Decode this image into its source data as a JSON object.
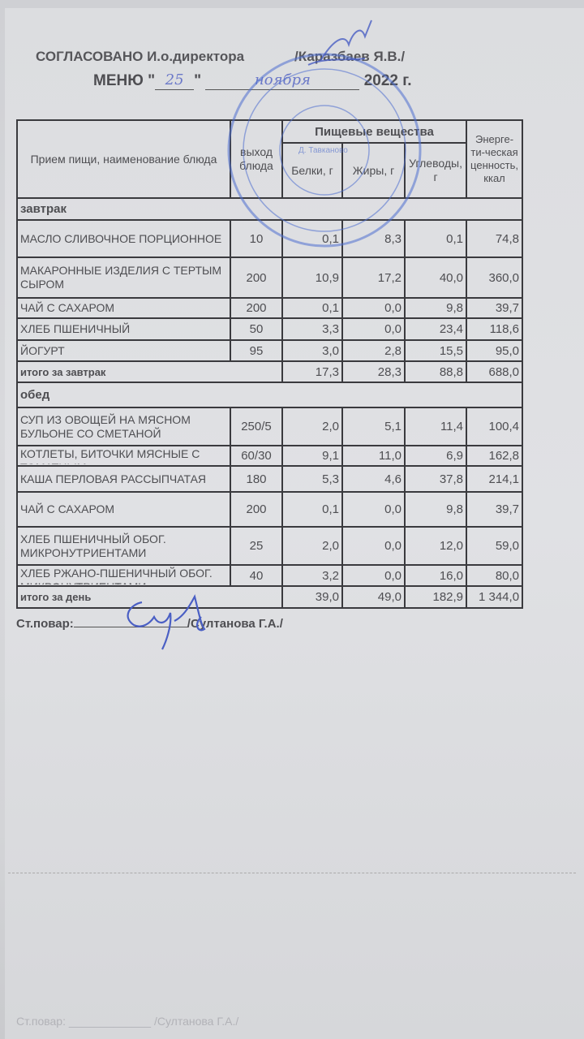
{
  "header": {
    "approved_label": "СОГЛАСОВАНО И.о.директора",
    "director_name": "/Каразбаев Я.В./",
    "menu_label": "МЕНЮ",
    "day_handwritten": "25",
    "month_handwritten": "ноября",
    "year_label": "2022 г."
  },
  "table": {
    "columns": {
      "dish": "Прием пищи, наименование блюда",
      "yield": "выход блюда",
      "nutrients": "Пищевые вещества",
      "protein": "Белки, г",
      "fat": "Жиры, г",
      "carbs": "Углеводы, г",
      "energy": "Энерге-ти-ческая ценность, ккал"
    },
    "sections": [
      {
        "title": "завтрак",
        "rows": [
          {
            "name": " МАСЛО  СЛИВОЧНОЕ ПОРЦИОННОЕ",
            "yield": "10",
            "protein": "0,1",
            "fat": "8,3",
            "carbs": "0,1",
            "energy": "74,8"
          },
          {
            "name": "МАКАРОННЫЕ ИЗДЕЛИЯ  С ТЕРТЫМ СЫРОМ",
            "yield": "200",
            "protein": "10,9",
            "fat": "17,2",
            "carbs": "40,0",
            "energy": "360,0"
          },
          {
            "name": "ЧАЙ С САХАРОМ",
            "yield": "200",
            "protein": "0,1",
            "fat": "0,0",
            "carbs": "9,8",
            "energy": "39,7"
          },
          {
            "name": "ХЛЕБ ПШЕНИЧНЫЙ",
            "yield": "50",
            "protein": "3,3",
            "fat": "0,0",
            "carbs": "23,4",
            "energy": "118,6"
          },
          {
            "name": "ЙОГУРТ",
            "yield": "95",
            "protein": "3,0",
            "fat": "2,8",
            "carbs": "15,5",
            "energy": "95,0"
          }
        ],
        "total": {
          "label": "итого за завтрак",
          "protein": "17,3",
          "fat": "28,3",
          "carbs": "88,8",
          "energy": "688,0"
        }
      },
      {
        "title": "обед",
        "rows": [
          {
            "name": "СУП ИЗ ОВОЩЕЙ НА МЯСНОМ БУЛЬОНЕ СО СМЕТАНОЙ",
            "yield": "250/5",
            "protein": "2,0",
            "fat": "5,1",
            "carbs": "11,4",
            "energy": "100,4"
          },
          {
            "name": "КОТЛЕТЫ, БИТОЧКИ МЯСНЫЕ С ТОМАТНЫМ",
            "yield": "60/30",
            "protein": "9,1",
            "fat": "11,0",
            "carbs": "6,9",
            "energy": "162,8"
          },
          {
            "name": "КАША ПЕРЛОВАЯ РАССЫПЧАТАЯ",
            "yield": "180",
            "protein": "5,3",
            "fat": "4,6",
            "carbs": "37,8",
            "energy": "214,1"
          },
          {
            "name": "ЧАЙ С САХАРОМ",
            "yield": "200",
            "protein": "0,1",
            "fat": "0,0",
            "carbs": "9,8",
            "energy": "39,7"
          },
          {
            "name": "ХЛЕБ ПШЕНИЧНЫЙ ОБОГ. МИКРОНУТРИЕНТАМИ",
            "yield": "25",
            "protein": "2,0",
            "fat": "0,0",
            "carbs": "12,0",
            "energy": "59,0"
          },
          {
            "name": "ХЛЕБ РЖАНО-ПШЕНИЧНЫЙ ОБОГ. МИКРОНУТРИЕНТАМИ",
            "yield": "40",
            "protein": "3,2",
            "fat": "0,0",
            "carbs": "16,0",
            "energy": "80,0"
          }
        ],
        "total": {
          "label": "итого за день",
          "protein": "39,0",
          "fat": "49,0",
          "carbs": "182,9",
          "energy": "1 344,0"
        }
      }
    ]
  },
  "footer": {
    "chef_label": "Ст.повар:",
    "chef_name": "/Султанова Г.А./"
  },
  "stamp": {
    "text": "Д. Тавканово",
    "color": "#4f6fd0"
  },
  "colors": {
    "ink_signature": "#4a5fc4",
    "paper": "#dcdde0"
  }
}
